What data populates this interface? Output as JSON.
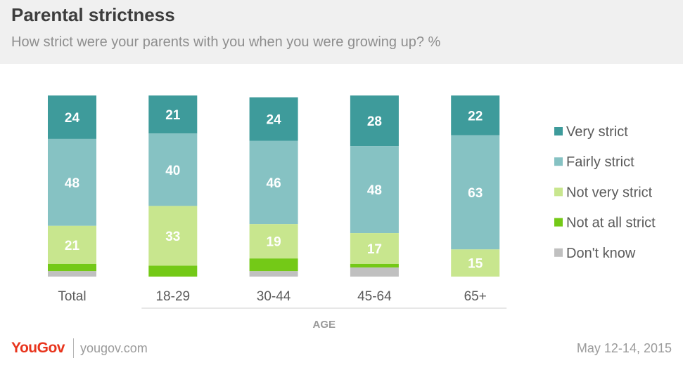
{
  "header": {
    "title": "Parental strictness",
    "subtitle": "How strict were your parents with you when you were growing up? %"
  },
  "chart_data": {
    "type": "bar",
    "stacked": true,
    "categories": [
      "Total",
      "18-29",
      "30-44",
      "45-64",
      "65+"
    ],
    "group_label": "AGE",
    "series": [
      {
        "name": "Very strict",
        "color": "#3e9b9b",
        "values": [
          24,
          21,
          24,
          28,
          22
        ]
      },
      {
        "name": "Fairly strict",
        "color": "#86c2c3",
        "values": [
          48,
          40,
          46,
          48,
          63
        ]
      },
      {
        "name": "Not very strict",
        "color": "#c8e68e",
        "values": [
          21,
          33,
          19,
          17,
          15
        ]
      },
      {
        "name": "Not at all strict",
        "color": "#74c917",
        "values": [
          4,
          6,
          7,
          2,
          0
        ]
      },
      {
        "name": "Don't know",
        "color": "#c0c0c0",
        "values": [
          3,
          0,
          3,
          5,
          0
        ]
      }
    ],
    "data_labels_on_series": [
      "Very strict",
      "Fairly strict",
      "Not very strict"
    ],
    "legend_position": "right",
    "grid": false,
    "ylim": [
      0,
      100
    ]
  },
  "footer": {
    "brand_you": "You",
    "brand_gov": "Gov",
    "website": "yougov.com",
    "date": "May 12-14, 2015"
  }
}
